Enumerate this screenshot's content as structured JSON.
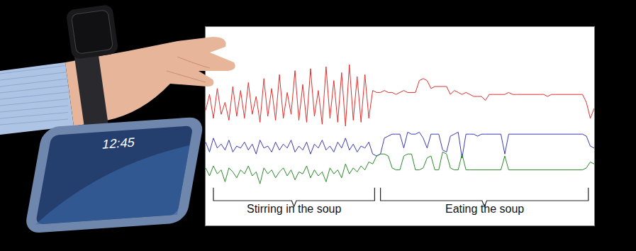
{
  "chart_data": {
    "type": "line",
    "x": [
      0,
      1,
      2,
      3,
      4,
      5,
      6,
      7,
      8,
      9,
      10,
      11,
      12,
      13,
      14,
      15,
      16,
      17,
      18,
      19,
      20,
      21,
      22,
      23,
      24,
      25,
      26,
      27,
      28,
      29,
      30,
      31,
      32,
      33,
      34,
      35,
      36,
      37,
      38,
      39,
      40,
      41,
      42,
      43,
      44,
      45,
      46,
      47,
      48,
      49,
      50,
      51,
      52,
      53,
      54,
      55,
      56,
      57,
      58,
      59,
      60,
      61,
      62,
      63,
      64,
      65,
      66,
      67,
      68,
      69,
      70,
      71,
      72,
      73,
      74,
      75,
      76,
      77,
      78,
      79,
      80,
      81,
      82,
      83,
      84,
      85,
      86,
      87,
      88,
      89,
      90,
      91,
      92,
      93,
      94,
      95,
      96,
      97,
      98,
      99,
      100
    ],
    "series": [
      {
        "color": "#e0302e",
        "values": [
          5.8,
          6.6,
          5.4,
          6.9,
          5.6,
          6.2,
          5.3,
          7.0,
          5.5,
          6.8,
          5.4,
          7.2,
          5.6,
          6.5,
          5.2,
          7.4,
          5.5,
          6.9,
          5.3,
          7.6,
          5.4,
          6.7,
          5.6,
          7.8,
          5.3,
          7.1,
          5.2,
          7.9,
          5.5,
          6.8,
          5.1,
          8.0,
          5.4,
          7.3,
          5.2,
          7.7,
          5.0,
          8.1,
          5.3,
          7.5,
          5.2,
          7.6,
          5.4,
          6.8,
          6.7,
          6.7,
          6.8,
          6.7,
          6.7,
          6.6,
          6.7,
          6.8,
          6.7,
          6.7,
          6.7,
          7.3,
          7.4,
          7.3,
          6.9,
          7.0,
          7.0,
          7.0,
          7.0,
          6.6,
          6.8,
          6.7,
          6.6,
          6.7,
          6.6,
          6.5,
          6.5,
          6.5,
          6.3,
          6.6,
          6.6,
          6.6,
          6.6,
          6.6,
          6.7,
          6.6,
          6.6,
          6.6,
          6.6,
          6.6,
          6.6,
          6.6,
          6.6,
          6.6,
          6.5,
          6.6,
          6.6,
          6.6,
          6.6,
          6.6,
          6.6,
          6.6,
          6.6,
          6.6,
          6.2,
          5.4,
          5.9
        ]
      },
      {
        "color": "#3a3ab8",
        "values": [
          4.2,
          3.7,
          4.4,
          3.9,
          4.1,
          3.8,
          4.3,
          3.7,
          4.0,
          3.9,
          4.2,
          3.8,
          4.1,
          3.6,
          4.3,
          3.9,
          4.0,
          3.7,
          4.2,
          3.8,
          4.1,
          3.9,
          4.3,
          3.7,
          4.0,
          3.8,
          4.2,
          3.6,
          4.1,
          3.9,
          4.3,
          3.8,
          4.0,
          3.7,
          4.2,
          3.9,
          4.4,
          3.8,
          4.1,
          3.7,
          4.0,
          3.9,
          4.2,
          3.6,
          3.5,
          3.6,
          4.4,
          4.5,
          4.6,
          4.6,
          4.6,
          3.9,
          4.7,
          4.6,
          4.6,
          4.7,
          4.4,
          3.9,
          4.6,
          4.6,
          4.6,
          3.8,
          3.7,
          4.5,
          4.6,
          4.7,
          3.4,
          4.6,
          4.6,
          4.6,
          4.5,
          4.6,
          4.6,
          4.6,
          4.6,
          4.6,
          4.6,
          3.6,
          4.6,
          4.6,
          4.6,
          4.6,
          4.6,
          4.6,
          4.6,
          4.6,
          4.6,
          4.6,
          4.6,
          4.6,
          4.6,
          4.6,
          4.6,
          4.6,
          4.6,
          4.6,
          4.6,
          4.6,
          4.5,
          4.0,
          3.9
        ]
      },
      {
        "color": "#2a8a2a",
        "values": [
          2.9,
          2.5,
          3.0,
          2.6,
          2.8,
          2.2,
          2.9,
          2.7,
          2.4,
          2.8,
          2.6,
          3.0,
          2.5,
          2.7,
          2.1,
          2.9,
          2.6,
          2.8,
          2.4,
          2.7,
          2.9,
          2.5,
          2.8,
          2.3,
          2.7,
          2.6,
          3.0,
          2.4,
          2.8,
          2.5,
          2.7,
          2.2,
          2.9,
          2.6,
          2.8,
          2.4,
          3.1,
          2.6,
          2.9,
          2.7,
          3.0,
          2.8,
          3.2,
          3.1,
          3.5,
          3.6,
          3.6,
          3.5,
          2.9,
          2.8,
          2.8,
          3.5,
          3.6,
          3.6,
          2.8,
          2.8,
          2.9,
          3.4,
          3.5,
          2.8,
          2.8,
          3.7,
          3.6,
          2.9,
          2.8,
          2.8,
          3.6,
          2.8,
          2.8,
          2.8,
          2.8,
          2.8,
          2.8,
          2.8,
          2.8,
          2.8,
          2.8,
          3.5,
          2.8,
          2.8,
          2.8,
          2.8,
          2.8,
          2.8,
          2.8,
          2.8,
          2.8,
          2.8,
          2.8,
          2.8,
          2.8,
          2.8,
          2.8,
          2.8,
          2.8,
          2.8,
          2.8,
          2.8,
          2.9,
          3.2,
          3.1
        ]
      }
    ],
    "xlim": [
      0,
      100
    ],
    "ylim": [
      0,
      10
    ],
    "tick_labels": false,
    "grid": false,
    "annotations": [
      {
        "text": "Stirring in the soup",
        "from": 2,
        "to": 43.5
      },
      {
        "text": "Eating the soup",
        "from": 45,
        "to": 98.5
      },
      {
        "text": "12:45"
      }
    ]
  }
}
